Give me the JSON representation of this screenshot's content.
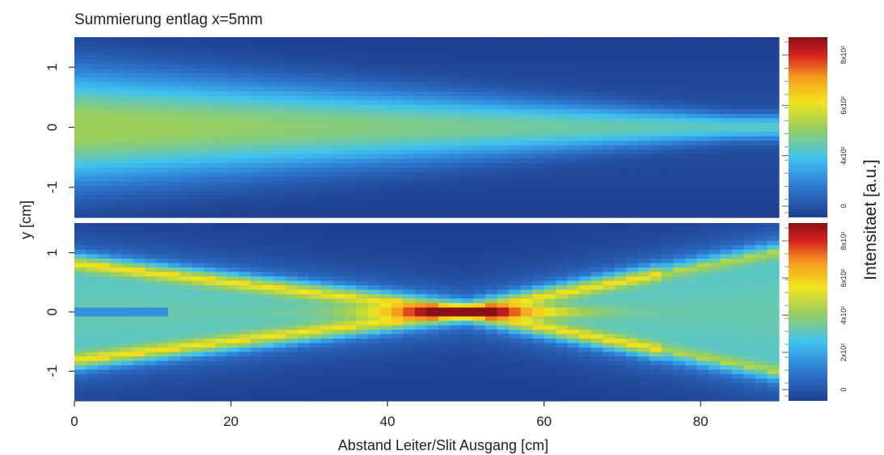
{
  "chart_data": {
    "type": "heatmap",
    "title": "Summierung entlag x=5mm",
    "xlabel": "Abstand Leiter/Slit Ausgang [cm]",
    "ylabel": "y [cm]",
    "colorbar_label": "Intensitaet [a.u.]",
    "xlim": [
      0,
      90
    ],
    "ylim": [
      -1.5,
      1.5
    ],
    "x_ticks": [
      0,
      20,
      40,
      60,
      80
    ],
    "y_ticks": [
      -1,
      0,
      1
    ],
    "colormap": [
      "#1f3e8f",
      "#2f7fd6",
      "#3fc3f0",
      "#9ccf5a",
      "#f2e51c",
      "#f59a1e",
      "#d8201e",
      "#8a0f16"
    ],
    "panels": [
      {
        "name": "top",
        "colorbar_ticks": [
          "0",
          "4x10²",
          "6x10²",
          "8x10²"
        ],
        "description_values": {
          "core_half_width_start_cm": 0.9,
          "core_half_width_end_cm": 0.15,
          "peak_level": 0.42,
          "edge_level": 0.05
        }
      },
      {
        "name": "bottom",
        "colorbar_ticks": [
          "0",
          "2x10²",
          "4x10²",
          "6x10²",
          "8x10²"
        ],
        "description_values": {
          "focus_x_cm": 50,
          "focus_y_cm": 0,
          "peak_level": 1.0,
          "beam_half_width_start_cm": 0.85,
          "beam_half_width_end_cm": 1.05
        }
      }
    ]
  }
}
